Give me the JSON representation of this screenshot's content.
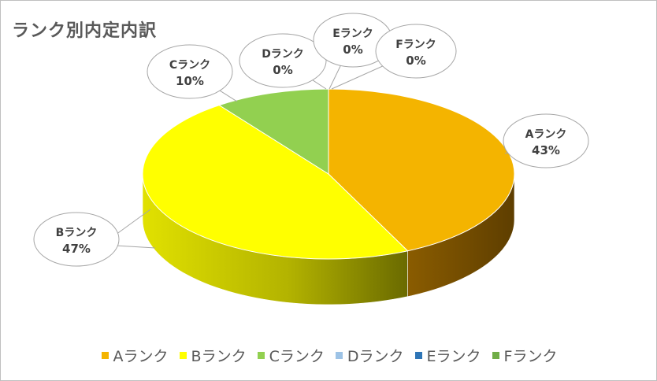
{
  "chart_data": {
    "type": "pie",
    "title": "ランク別内定内訳",
    "categories": [
      "Aランク",
      "Bランク",
      "Cランク",
      "Dランク",
      "Eランク",
      "Fランク"
    ],
    "values": [
      43,
      47,
      10,
      0,
      0,
      0
    ],
    "data_labels": [
      "43%",
      "47%",
      "10%",
      "0%",
      "0%",
      "0%"
    ],
    "colors": [
      "#f4b400",
      "#ffff00",
      "#92d050",
      "#9dc3e6",
      "#2e75b6",
      "#70ad47"
    ],
    "legend_position": "bottom",
    "style": "3d-pie"
  }
}
